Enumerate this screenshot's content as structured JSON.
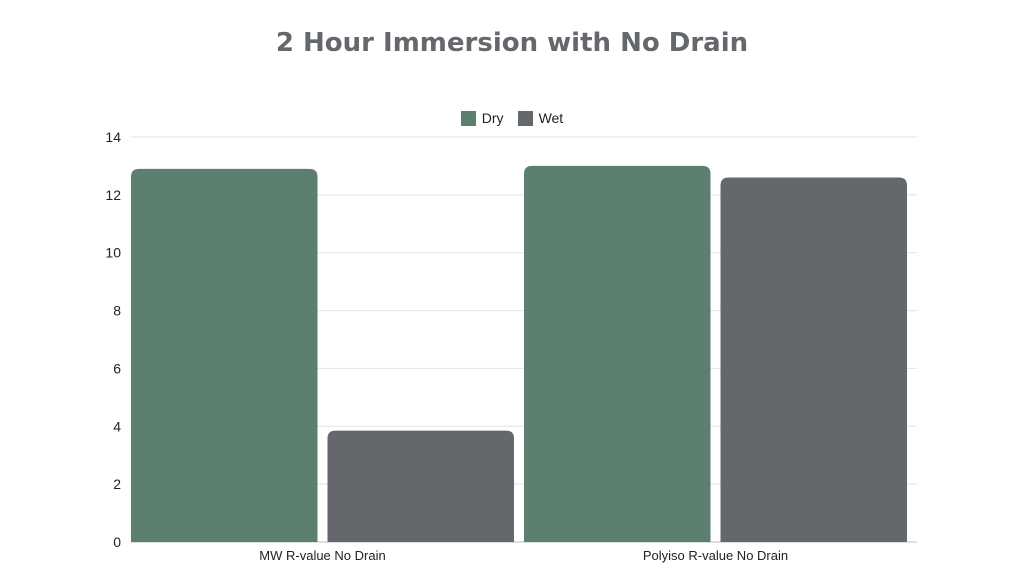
{
  "chart_data": {
    "type": "bar",
    "title": "2 Hour Immersion with No Drain",
    "xlabel": "",
    "ylabel": "",
    "categories": [
      "MW R-value No Drain",
      "Polyiso R-value No Drain"
    ],
    "series": [
      {
        "name": "Dry",
        "values": [
          12.9,
          13.0
        ],
        "color": "#5d7f70"
      },
      {
        "name": "Wet",
        "values": [
          3.85,
          12.6
        ],
        "color": "#64676b"
      }
    ],
    "ylim": [
      0,
      14
    ],
    "yticks": [
      "0",
      "2",
      "4",
      "6",
      "8",
      "10",
      "12",
      "14"
    ],
    "grid": true,
    "legend_position": "top-center"
  }
}
